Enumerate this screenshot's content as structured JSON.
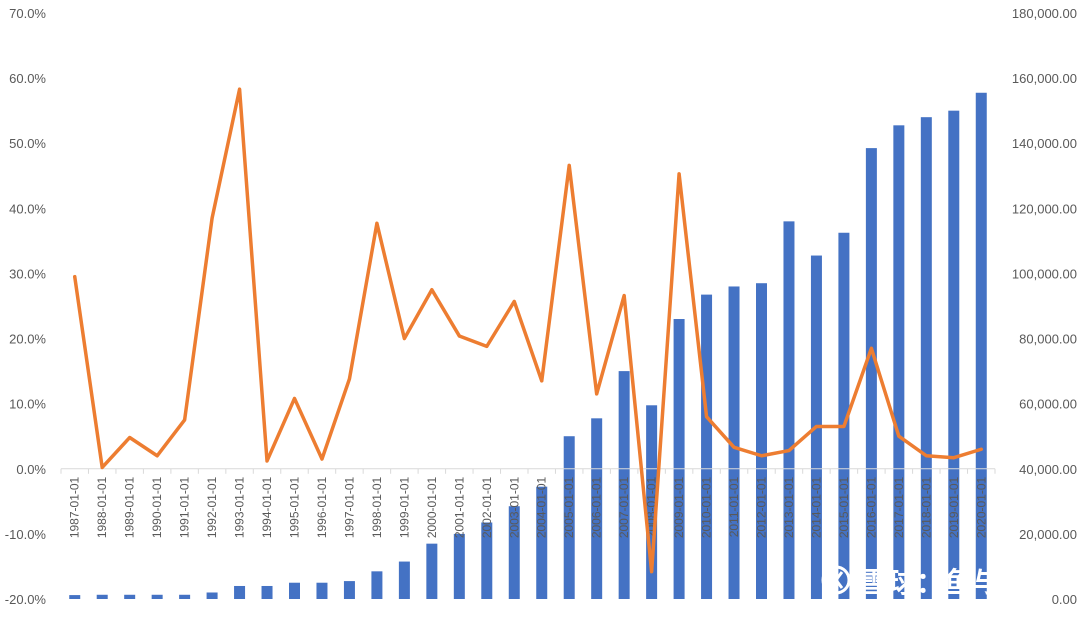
{
  "chart_data": {
    "type": "bar+line",
    "title": "",
    "categories": [
      "1987-01-01",
      "1988-01-01",
      "1989-01-01",
      "1990-01-01",
      "1991-01-01",
      "1992-01-01",
      "1993-01-01",
      "1994-01-01",
      "1995-01-01",
      "1996-01-01",
      "1997-01-01",
      "1998-01-01",
      "1999-01-01",
      "2000-01-01",
      "2001-01-01",
      "2002-01-01",
      "2003-01-01",
      "2004-01-01",
      "2005-01-01",
      "2006-01-01",
      "2007-01-01",
      "2008-01-01",
      "2009-01-01",
      "2010-01-01",
      "2011-01-01",
      "2012-01-01",
      "2013-01-01",
      "2014-01-01",
      "2015-01-01",
      "2016-01-01",
      "2017-01-01",
      "2018-01-01",
      "2019-01-01",
      "2020-01-01"
    ],
    "series": [
      {
        "type": "bar",
        "axis": "right",
        "color": "#4472C4",
        "values": [
          1200,
          1300,
          1300,
          1300,
          1300,
          2000,
          4000,
          4000,
          5000,
          5000,
          5500,
          8500,
          11500,
          17000,
          20000,
          23500,
          28500,
          34500,
          50000,
          55500,
          70000,
          59500,
          86000,
          93500,
          96000,
          97000,
          116000,
          105500,
          112500,
          138500,
          145500,
          148000,
          150000,
          155500
        ]
      },
      {
        "type": "line",
        "axis": "left",
        "color": "#ED7D31",
        "values": [
          29.5,
          0.2,
          4.8,
          2.0,
          7.5,
          38.5,
          58.3,
          1.2,
          10.8,
          1.5,
          13.8,
          37.7,
          20.0,
          27.5,
          20.4,
          18.8,
          25.7,
          13.5,
          46.6,
          11.5,
          26.6,
          -15.8,
          45.3,
          8.0,
          3.3,
          2.0,
          2.8,
          6.5,
          6.5,
          18.5,
          5.0,
          2.0,
          1.7,
          3.0
        ]
      }
    ],
    "y_left": {
      "min": -20,
      "max": 70,
      "step": 10,
      "tick_labels": [
        "-20.0%",
        "-10.0%",
        "0.0%",
        "10.0%",
        "20.0%",
        "30.0%",
        "40.0%",
        "50.0%",
        "60.0%",
        "70.0%"
      ]
    },
    "y_right": {
      "min": 0,
      "max": 180000,
      "step": 20000,
      "tick_labels": [
        "0.00",
        "20,000.00",
        "40,000.00",
        "60,000.00",
        "80,000.00",
        "100,000.00",
        "120,000.00",
        "140,000.00",
        "160,000.00",
        "180,000.00"
      ]
    },
    "xlabel": "",
    "ylabel_left": "",
    "ylabel_right": "",
    "grid": false,
    "legend": "none"
  },
  "watermark": {
    "text": "雪球：鱼与塘"
  }
}
